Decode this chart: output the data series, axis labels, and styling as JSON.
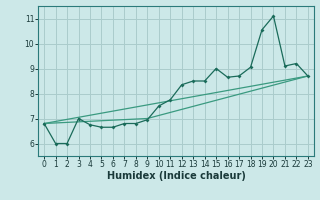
{
  "title": "",
  "xlabel": "Humidex (Indice chaleur)",
  "bg_color": "#cce8e8",
  "grid_color": "#aacccc",
  "line_color": "#1a6b5a",
  "line_color_light": "#3a9a80",
  "xlim": [
    -0.5,
    23.5
  ],
  "ylim": [
    5.5,
    11.5
  ],
  "yticks": [
    6,
    7,
    8,
    9,
    10,
    11
  ],
  "xticks": [
    0,
    1,
    2,
    3,
    4,
    5,
    6,
    7,
    8,
    9,
    10,
    11,
    12,
    13,
    14,
    15,
    16,
    17,
    18,
    19,
    20,
    21,
    22,
    23
  ],
  "series1_x": [
    0,
    1,
    2,
    3,
    4,
    5,
    6,
    7,
    8,
    9,
    10,
    11,
    12,
    13,
    14,
    15,
    16,
    17,
    18,
    19,
    20,
    21,
    22,
    23
  ],
  "series1_y": [
    6.8,
    6.0,
    6.0,
    7.0,
    6.75,
    6.65,
    6.65,
    6.8,
    6.8,
    6.95,
    7.5,
    7.75,
    8.35,
    8.5,
    8.5,
    9.0,
    8.65,
    8.7,
    9.05,
    10.55,
    11.1,
    9.1,
    9.2,
    8.7
  ],
  "series2_x": [
    0,
    23
  ],
  "series2_y": [
    6.8,
    8.7
  ],
  "series3_x": [
    0,
    9,
    23
  ],
  "series3_y": [
    6.8,
    7.0,
    8.7
  ],
  "tick_fontsize": 5.5,
  "xlabel_fontsize": 7
}
